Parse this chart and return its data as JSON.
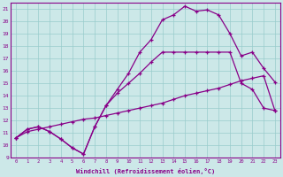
{
  "xlabel": "Windchill (Refroidissement éolien,°C)",
  "bg_color": "#cce8e8",
  "line_color": "#880088",
  "grid_color": "#99cccc",
  "xlim": [
    -0.5,
    23.5
  ],
  "ylim": [
    9,
    21.5
  ],
  "xticks": [
    0,
    1,
    2,
    3,
    4,
    5,
    6,
    7,
    8,
    9,
    10,
    11,
    12,
    13,
    14,
    15,
    16,
    17,
    18,
    19,
    20,
    21,
    22,
    23
  ],
  "yticks": [
    9,
    10,
    11,
    12,
    13,
    14,
    15,
    16,
    17,
    18,
    19,
    20,
    21
  ],
  "line1_x": [
    0,
    1,
    2,
    3,
    4,
    5,
    6,
    7,
    8,
    9,
    10,
    11,
    12,
    13,
    14,
    15,
    16,
    17,
    18,
    19,
    20,
    21,
    22,
    23
  ],
  "line1_y": [
    10.6,
    11.3,
    11.5,
    11.1,
    10.5,
    9.8,
    9.3,
    11.5,
    13.2,
    14.5,
    15.8,
    17.5,
    18.5,
    20.1,
    20.5,
    21.2,
    20.8,
    20.9,
    20.5,
    19.0,
    17.2,
    17.5,
    16.2,
    15.1
  ],
  "line2_x": [
    0,
    1,
    2,
    3,
    4,
    5,
    6,
    7,
    8,
    9,
    10,
    11,
    12,
    13,
    14,
    15,
    16,
    17,
    18,
    19,
    20,
    21,
    22,
    23
  ],
  "line2_y": [
    10.6,
    11.3,
    11.5,
    11.1,
    10.5,
    9.8,
    9.3,
    11.5,
    13.2,
    14.2,
    15.0,
    15.8,
    16.7,
    17.5,
    17.5,
    17.5,
    17.5,
    17.5,
    17.5,
    17.5,
    15.0,
    14.5,
    13.0,
    12.8
  ],
  "line3_x": [
    0,
    1,
    2,
    3,
    4,
    5,
    6,
    7,
    8,
    9,
    10,
    11,
    12,
    13,
    14,
    15,
    16,
    17,
    18,
    19,
    20,
    21,
    22,
    23
  ],
  "line3_y": [
    10.6,
    11.1,
    11.3,
    11.5,
    11.7,
    11.9,
    12.1,
    12.2,
    12.4,
    12.6,
    12.8,
    13.0,
    13.2,
    13.4,
    13.7,
    14.0,
    14.2,
    14.4,
    14.6,
    14.9,
    15.2,
    15.4,
    15.6,
    12.8
  ]
}
